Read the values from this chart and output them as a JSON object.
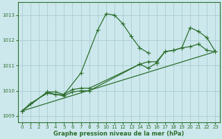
{
  "background_color": "#cce8ec",
  "grid_color": "#aaccd4",
  "line_color": "#2d6e2d",
  "xlabel": "Graphe pression niveau de la mer (hPa)",
  "xlim": [
    -0.5,
    23.5
  ],
  "ylim": [
    1008.75,
    1013.5
  ],
  "yticks": [
    1009,
    1010,
    1011,
    1012,
    1013
  ],
  "xticks": [
    0,
    1,
    2,
    3,
    4,
    5,
    6,
    7,
    8,
    9,
    10,
    11,
    12,
    13,
    14,
    15,
    16,
    17,
    18,
    19,
    20,
    21,
    22,
    23
  ],
  "line1": {
    "x": [
      0,
      1,
      3,
      4,
      5,
      7,
      9,
      10,
      11,
      12,
      13,
      14,
      15
    ],
    "y": [
      1009.2,
      1009.5,
      1009.9,
      1009.85,
      1009.85,
      1010.7,
      1012.4,
      1013.05,
      1013.0,
      1012.65,
      1012.15,
      1011.7,
      1011.5
    ]
  },
  "line2": {
    "x": [
      0,
      3,
      4,
      5,
      6,
      7,
      8,
      14,
      15,
      16,
      17,
      18,
      19,
      20,
      21,
      22,
      23
    ],
    "y": [
      1009.2,
      1009.95,
      1009.95,
      1009.85,
      1010.05,
      1010.1,
      1010.1,
      1011.05,
      1011.15,
      1011.15,
      1011.55,
      1011.6,
      1011.7,
      1011.75,
      1011.85,
      1011.6,
      1011.55
    ]
  },
  "line3": {
    "x": [
      0,
      3,
      4,
      5,
      6,
      7,
      8,
      14,
      15,
      16,
      17,
      18,
      19,
      20,
      21,
      22,
      23
    ],
    "y": [
      1009.2,
      1009.95,
      1009.85,
      1009.8,
      1009.95,
      1010.0,
      1010.0,
      1011.05,
      1010.9,
      1011.1,
      1011.55,
      1011.6,
      1011.7,
      1012.5,
      1012.35,
      1012.1,
      1011.55
    ]
  },
  "line4": {
    "x": [
      0,
      23
    ],
    "y": [
      1009.2,
      1011.55
    ]
  }
}
